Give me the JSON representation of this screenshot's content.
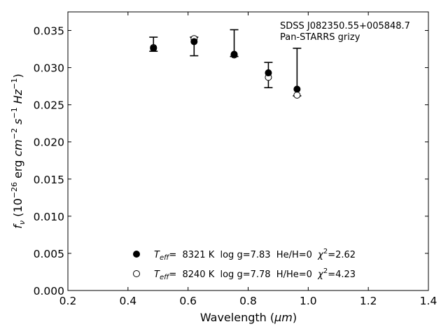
{
  "chart_data": {
    "type": "scatter",
    "xlabel_prefix": "Wavelength (",
    "xlabel_unit": "μm",
    "xlabel_suffix": ")",
    "ylabel": {
      "f": "f",
      "nu": "ν",
      "open": " (10",
      "exp1": "−26",
      "erg": " erg ",
      "cm": "cm",
      "exp2": "−2",
      "s": " s",
      "exp3": "−1",
      "hz": " Hz",
      "exp4": "−1",
      "close": ")"
    },
    "xlim": [
      0.2,
      1.4
    ],
    "ylim": [
      0.0,
      0.0375
    ],
    "xticks": [
      0.2,
      0.4,
      0.6,
      0.8,
      1.0,
      1.2,
      1.4
    ],
    "xtick_labels": [
      "0.2",
      "0.4",
      "0.6",
      "0.8",
      "1.0",
      "1.2",
      "1.4"
    ],
    "yticks": [
      0.0,
      0.005,
      0.01,
      0.015,
      0.02,
      0.025,
      0.03,
      0.035
    ],
    "ytick_labels": [
      "0.000",
      "0.005",
      "0.010",
      "0.015",
      "0.020",
      "0.025",
      "0.030",
      "0.035"
    ],
    "annotation": [
      "SDSS J082350.55+005848.7",
      "Pan-STARRS grizy"
    ],
    "observed": {
      "x": [
        0.4849,
        0.6201,
        0.7535,
        0.8674,
        0.9628
      ],
      "y": [
        0.03265,
        0.0336,
        0.0318,
        0.0293,
        0.0271
      ],
      "err_low": [
        0.0322,
        0.0316,
        0.0315,
        0.0273,
        0.0262
      ],
      "err_high": [
        0.0341,
        0.0341,
        0.0351,
        0.0307,
        0.0326
      ]
    },
    "series": [
      {
        "marker": "filled-circle",
        "x": [
          0.4849,
          0.6201,
          0.7535,
          0.8674,
          0.9628
        ],
        "y": [
          0.0326,
          0.0335,
          0.0318,
          0.0293,
          0.0271
        ],
        "legend": {
          "t": "T",
          "sub": "eff",
          "rest": "=  8321 K  log g=7.83  He/H=0  ",
          "chi": "χ",
          "sup": "2",
          "chi_val": "=2.62"
        }
      },
      {
        "marker": "open-circle",
        "x": [
          0.4849,
          0.6201,
          0.7535,
          0.8674,
          0.9628
        ],
        "y": [
          0.0327,
          0.0339,
          0.0317,
          0.0287,
          0.0263
        ],
        "legend": {
          "t": "T",
          "sub": "eff",
          "rest": "=  8240 K  log g=7.78  H/He=0  ",
          "chi": "χ",
          "sup": "2",
          "chi_val": "=4.23"
        }
      }
    ],
    "legend_position": "lower-center",
    "grid": false
  }
}
